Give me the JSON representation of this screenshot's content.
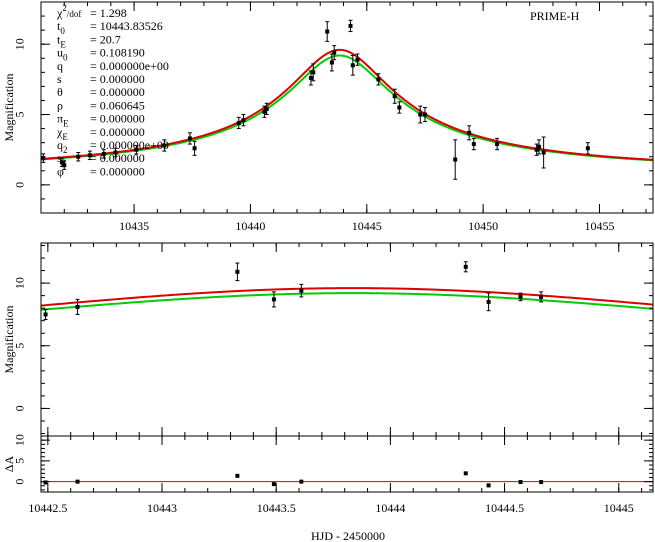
{
  "chart_data": {
    "type": "line",
    "label": "PRIME-H",
    "xlabel": "HJD - 2450000",
    "parameters": [
      {
        "name": "χ²/dof",
        "value": "= 1.298"
      },
      {
        "name": "t0",
        "value": "= 10443.83526"
      },
      {
        "name": "tE",
        "value": "= 20.7"
      },
      {
        "name": "u0",
        "value": "= 0.108190"
      },
      {
        "name": "q",
        "value": "= 0.000000e+00"
      },
      {
        "name": "s",
        "value": "= 0.000000"
      },
      {
        "name": "θ",
        "value": "= 0.000000"
      },
      {
        "name": "ρ",
        "value": "= 0.060645"
      },
      {
        "name": "πE",
        "value": "= 0.000000"
      },
      {
        "name": "χE",
        "value": "= 0.000000"
      },
      {
        "name": "q2",
        "value": "= 0.000000e+00"
      },
      {
        "name": "s2",
        "value": "= 0.000000"
      },
      {
        "name": "φ",
        "value": "= 0.000000"
      }
    ],
    "model_params": {
      "t0": 10443.83526,
      "tE": 20.7,
      "u0": 0.10819,
      "red_peak": 9.6,
      "green_peak": 9.2
    },
    "series": [
      {
        "name": "model",
        "color": "#dd0000"
      },
      {
        "name": "single-lens",
        "color": "#00cc00"
      }
    ],
    "panels": [
      {
        "name": "full",
        "ylabel": "Magnification",
        "xlim": [
          10431,
          10457.3
        ],
        "ylim": [
          -2,
          13
        ],
        "xticks": [
          10435,
          10440,
          10445,
          10450,
          10455
        ],
        "yticks": [
          0,
          5,
          10
        ],
        "points": [
          {
            "x": 10431.1,
            "y": 1.9,
            "e": 0.3
          },
          {
            "x": 10431.9,
            "y": 1.6,
            "e": 0.3
          },
          {
            "x": 10432.0,
            "y": 1.4,
            "e": 0.3
          },
          {
            "x": 10432.6,
            "y": 2.0,
            "e": 0.3
          },
          {
            "x": 10433.1,
            "y": 2.1,
            "e": 0.3
          },
          {
            "x": 10433.7,
            "y": 2.2,
            "e": 0.3
          },
          {
            "x": 10434.2,
            "y": 2.3,
            "e": 0.3
          },
          {
            "x": 10435.1,
            "y": 2.5,
            "e": 0.3
          },
          {
            "x": 10436.3,
            "y": 2.8,
            "e": 0.4
          },
          {
            "x": 10437.4,
            "y": 3.3,
            "e": 0.4
          },
          {
            "x": 10437.6,
            "y": 2.6,
            "e": 0.5
          },
          {
            "x": 10439.5,
            "y": 4.4,
            "e": 0.4
          },
          {
            "x": 10439.7,
            "y": 4.6,
            "e": 0.4
          },
          {
            "x": 10440.6,
            "y": 5.2,
            "e": 0.4
          },
          {
            "x": 10440.7,
            "y": 5.4,
            "e": 0.4
          },
          {
            "x": 10442.6,
            "y": 7.6,
            "e": 0.5
          },
          {
            "x": 10442.7,
            "y": 8.0,
            "e": 0.6
          },
          {
            "x": 10443.3,
            "y": 10.9,
            "e": 0.7
          },
          {
            "x": 10443.5,
            "y": 8.7,
            "e": 0.6
          },
          {
            "x": 10443.6,
            "y": 9.4,
            "e": 0.5
          },
          {
            "x": 10444.3,
            "y": 11.3,
            "e": 0.4
          },
          {
            "x": 10444.4,
            "y": 8.5,
            "e": 0.7
          },
          {
            "x": 10444.6,
            "y": 8.9,
            "e": 0.4
          },
          {
            "x": 10445.5,
            "y": 7.5,
            "e": 0.4
          },
          {
            "x": 10446.2,
            "y": 6.3,
            "e": 0.5
          },
          {
            "x": 10446.4,
            "y": 5.5,
            "e": 0.4
          },
          {
            "x": 10447.3,
            "y": 5.0,
            "e": 0.6
          },
          {
            "x": 10447.5,
            "y": 5.0,
            "e": 0.5
          },
          {
            "x": 10448.8,
            "y": 1.8,
            "e": 1.4
          },
          {
            "x": 10449.4,
            "y": 3.7,
            "e": 0.5
          },
          {
            "x": 10449.6,
            "y": 2.9,
            "e": 0.4
          },
          {
            "x": 10450.6,
            "y": 2.9,
            "e": 0.4
          },
          {
            "x": 10452.3,
            "y": 2.5,
            "e": 0.4
          },
          {
            "x": 10452.4,
            "y": 2.7,
            "e": 0.5
          },
          {
            "x": 10452.6,
            "y": 2.3,
            "e": 1.1
          },
          {
            "x": 10454.5,
            "y": 2.6,
            "e": 0.4
          }
        ]
      },
      {
        "name": "zoom",
        "ylabel": "Magnification",
        "xlim": [
          10442.47,
          10445.15
        ],
        "ylim": [
          -2.2,
          13.2
        ],
        "xticks": [
          10442.5,
          10443,
          10443.5,
          10444,
          10444.5,
          10445
        ],
        "xticklabels": [
          "10442.5",
          "10443",
          "10443.5",
          "10444",
          "10444.5",
          "10445"
        ],
        "yticks": [
          0,
          5,
          10
        ],
        "points": [
          {
            "x": 10442.49,
            "y": 7.5,
            "e": 0.4
          },
          {
            "x": 10442.63,
            "y": 8.1,
            "e": 0.6
          },
          {
            "x": 10443.33,
            "y": 10.9,
            "e": 0.7
          },
          {
            "x": 10443.49,
            "y": 8.7,
            "e": 0.6
          },
          {
            "x": 10443.61,
            "y": 9.4,
            "e": 0.5
          },
          {
            "x": 10444.33,
            "y": 11.3,
            "e": 0.4
          },
          {
            "x": 10444.43,
            "y": 8.5,
            "e": 0.7
          },
          {
            "x": 10444.57,
            "y": 8.9,
            "e": 0.3
          },
          {
            "x": 10444.66,
            "y": 8.9,
            "e": 0.4
          }
        ]
      },
      {
        "name": "residual",
        "ylabel": "ΔA",
        "ylim": [
          -2.5,
          11
        ],
        "yticks": [
          0,
          5,
          10
        ],
        "yticklabels": [
          "0",
          "5",
          "10"
        ],
        "points": [
          {
            "x": 10442.49,
            "y": -0.2
          },
          {
            "x": 10442.63,
            "y": 0.0
          },
          {
            "x": 10443.33,
            "y": 1.4
          },
          {
            "x": 10443.49,
            "y": -0.6
          },
          {
            "x": 10443.61,
            "y": 0.0
          },
          {
            "x": 10444.33,
            "y": 2.0
          },
          {
            "x": 10444.43,
            "y": -0.9
          },
          {
            "x": 10444.57,
            "y": -0.1
          },
          {
            "x": 10444.66,
            "y": -0.1
          }
        ]
      }
    ]
  }
}
